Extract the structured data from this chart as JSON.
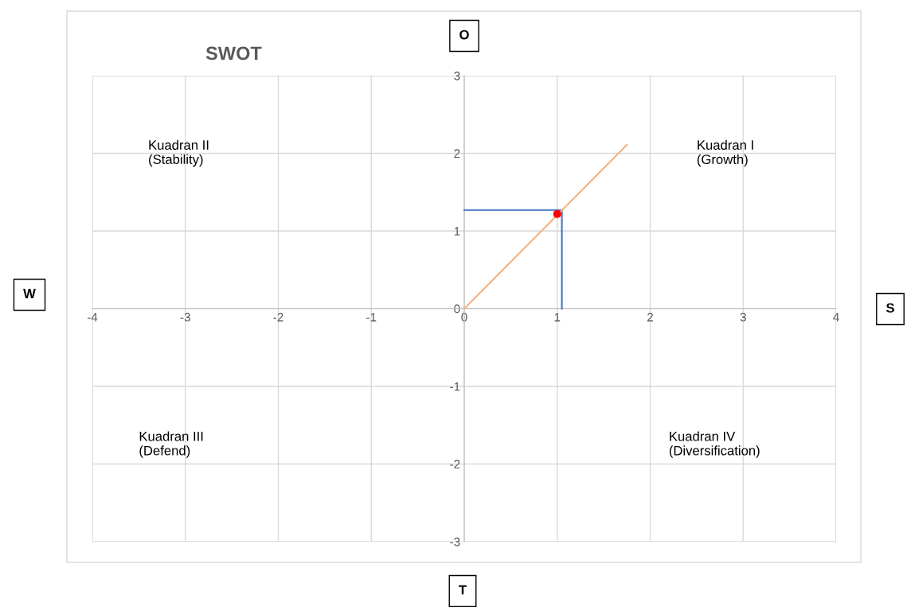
{
  "chart_data": {
    "type": "line",
    "title": "SWOT",
    "xlim": [
      -4,
      4
    ],
    "ylim": [
      -3,
      3
    ],
    "xticks": [
      -4,
      -3,
      -2,
      -1,
      0,
      1,
      2,
      3,
      4
    ],
    "yticks": [
      -3,
      -2,
      -1,
      0,
      1,
      2,
      3
    ],
    "grid": true,
    "series": [
      {
        "color": "#4472c4",
        "x": [
          0,
          1.05,
          1.05
        ],
        "values": [
          1.27,
          1.27,
          0
        ]
      },
      {
        "color": "#f4b183",
        "x": [
          0,
          1.75
        ],
        "values": [
          0,
          2.11
        ]
      },
      {
        "type": "scatter",
        "color": "#ff0000",
        "marker": "circle",
        "x": [
          1.0
        ],
        "values": [
          1.22
        ]
      }
    ],
    "annotations": [
      "Kuadran I\n(Growth)",
      "Kuadran II\n(Stability)",
      "Kuadran III\n(Defend)",
      "Kuadran IV\n(Diversification)",
      "O",
      "W",
      "S",
      "T"
    ]
  }
}
